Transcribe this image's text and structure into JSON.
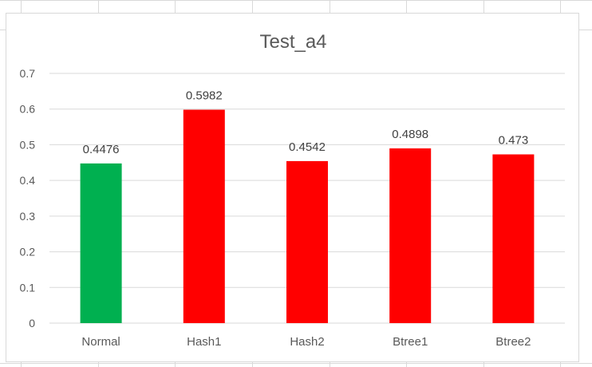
{
  "chart_data": {
    "type": "bar",
    "title": "Test_a4",
    "xlabel": "",
    "ylabel": "",
    "categories": [
      "Normal",
      "Hash1",
      "Hash2",
      "Btree1",
      "Btree2"
    ],
    "values": [
      0.4476,
      0.5982,
      0.4542,
      0.4898,
      0.473
    ],
    "value_labels": [
      "0.4476",
      "0.5982",
      "0.4542",
      "0.4898",
      "0.473"
    ],
    "bar_colors": [
      "#00b050",
      "#ff0000",
      "#ff0000",
      "#ff0000",
      "#ff0000"
    ],
    "ylim": [
      0,
      0.7
    ],
    "yticks": [
      "0",
      "0.1",
      "0.2",
      "0.3",
      "0.4",
      "0.5",
      "0.6",
      "0.7"
    ],
    "grid": true,
    "legend": "none"
  }
}
